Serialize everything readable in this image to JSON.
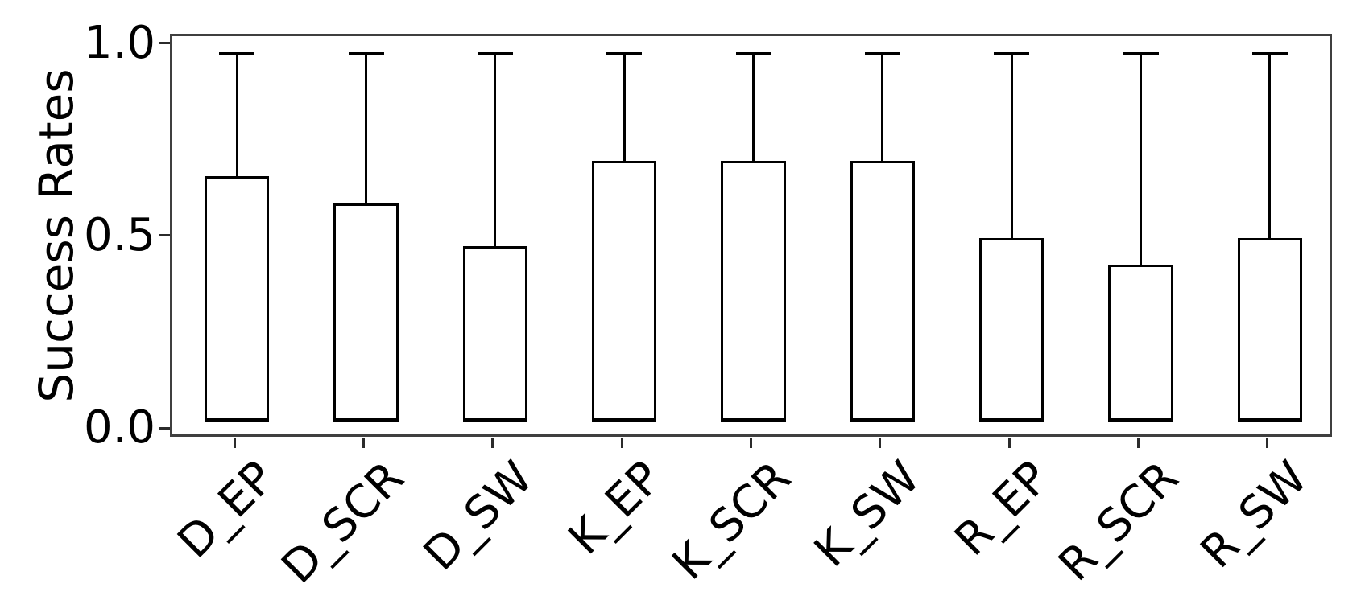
{
  "chart_data": {
    "type": "bar",
    "title": "",
    "ylabel": "Success Rates",
    "xlabel": "",
    "categories": [
      "D_EP",
      "D_SCR",
      "D_SW",
      "K_EP",
      "K_SCR",
      "K_SW",
      "R_EP",
      "R_SCR",
      "R_SW"
    ],
    "values": [
      0.66,
      0.59,
      0.48,
      0.7,
      0.7,
      0.7,
      0.5,
      0.43,
      0.5
    ],
    "bar_bottom": 0.02,
    "error_top": [
      0.98,
      0.98,
      0.98,
      0.98,
      0.98,
      0.98,
      0.98,
      0.98,
      0.98
    ],
    "bar_width_units": 0.5,
    "xlim": [
      -0.5,
      8.5
    ],
    "ylim": [
      -0.023,
      1.025
    ],
    "yticks": [
      {
        "value": 0.0,
        "label": "0.0"
      },
      {
        "value": 0.5,
        "label": "0.5"
      },
      {
        "value": 1.0,
        "label": "1.0"
      }
    ],
    "xtick_rotation_deg": 45,
    "grid": false,
    "legend": "none",
    "colors": {
      "background": "#ffffff",
      "bar_fill": "#ffffff",
      "bar_edge": "#000000",
      "error_line": "#000000",
      "spine": "#3f3f3f",
      "tick_mark": "#2b2b2b",
      "text": "#000000"
    }
  }
}
